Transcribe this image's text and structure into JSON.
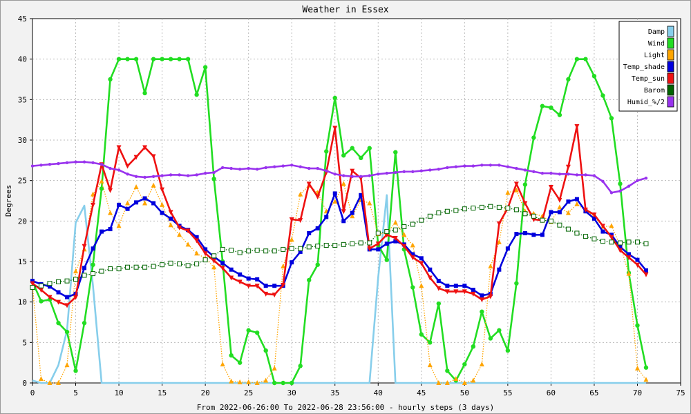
{
  "chart_data": {
    "type": "line",
    "title": "Weather in Essex",
    "xlabel": "From 2022-06-26:00 To 2022-06-28 23:56:00 - hourly steps (3 days)",
    "ylabel": "Degrees",
    "xlim": [
      0,
      75
    ],
    "ylim": [
      0,
      45
    ],
    "xticks": [
      0,
      5,
      10,
      15,
      20,
      25,
      30,
      35,
      40,
      45,
      50,
      55,
      60,
      65,
      70,
      75
    ],
    "yticks": [
      0,
      5,
      10,
      15,
      20,
      25,
      30,
      35,
      40,
      45
    ],
    "grid": true,
    "legend_position": "top-right",
    "x": [
      0,
      1,
      2,
      3,
      4,
      5,
      6,
      7,
      8,
      9,
      10,
      11,
      12,
      13,
      14,
      15,
      16,
      17,
      18,
      19,
      20,
      21,
      22,
      23,
      24,
      25,
      26,
      27,
      28,
      29,
      30,
      31,
      32,
      33,
      34,
      35,
      36,
      37,
      38,
      39,
      40,
      41,
      42,
      43,
      44,
      45,
      46,
      47,
      48,
      49,
      50,
      51,
      52,
      53,
      54,
      55,
      56,
      57,
      58,
      59,
      60,
      61,
      62,
      63,
      64,
      65,
      66,
      67,
      68,
      69,
      70,
      71
    ],
    "series": [
      {
        "name": "Damp",
        "color": "#87ceeb",
        "style": "solid",
        "marker": "none",
        "values": [
          0.3,
          0,
          0,
          2.2,
          6.5,
          19.8,
          21.9,
          12,
          0,
          0,
          0,
          0,
          0,
          0,
          0,
          0,
          0,
          0,
          0,
          0,
          0,
          0,
          0,
          0,
          0,
          0,
          0,
          0,
          0,
          0,
          0,
          0,
          0,
          0,
          0,
          0,
          0,
          0,
          0,
          0,
          13,
          23.2,
          0,
          0,
          0,
          0,
          0,
          0,
          0,
          0,
          0,
          0,
          0,
          0,
          0,
          0,
          0,
          0,
          0,
          0,
          0,
          0,
          0,
          0,
          0,
          0,
          0,
          0,
          0,
          0,
          0,
          0
        ]
      },
      {
        "name": "Wind",
        "color": "#22dd22",
        "style": "solid",
        "marker": "circle",
        "values": [
          12.5,
          10.1,
          10.3,
          7.4,
          6.3,
          1.5,
          7.4,
          14.6,
          24,
          37.5,
          40,
          40,
          40,
          35.8,
          40,
          40,
          40,
          40,
          40,
          35.6,
          39,
          25.2,
          15,
          3.4,
          2.5,
          6.5,
          6.2,
          4,
          0,
          0,
          0,
          2.1,
          12.7,
          14.6,
          28.6,
          35.2,
          28.1,
          29,
          27.8,
          29,
          17,
          15.2,
          28.5,
          16.5,
          11.8,
          6,
          5,
          9.8,
          1.5,
          0.3,
          2.3,
          4.5,
          8.8,
          5.5,
          6.5,
          4,
          12.3,
          24.5,
          30.3,
          34.2,
          34,
          33.1,
          37.5,
          40,
          40,
          37.9,
          35.5,
          32.7,
          24.6,
          13.6,
          7.1,
          1.9
        ]
      },
      {
        "name": "Light",
        "color": "#ffa500",
        "style": "dotted",
        "marker": "triangle",
        "values": [
          12,
          0.5,
          0,
          0,
          2.2,
          13.8,
          16.5,
          23.3,
          24.9,
          21,
          19.4,
          22.2,
          24.2,
          22.2,
          24.4,
          22,
          19.5,
          18.3,
          17.1,
          16,
          15.4,
          14.3,
          2.3,
          0.2,
          0.1,
          0.1,
          0,
          0.3,
          1.8,
          14.4,
          17.7,
          23.3,
          24.4,
          23.5,
          21.2,
          22.4,
          24.6,
          20.6,
          22.6,
          22.2,
          18.4,
          18.5,
          19.8,
          18.3,
          17,
          12,
          2.2,
          0,
          0,
          0.5,
          0,
          0.3,
          2.3,
          14.4,
          17.4,
          23.5,
          23.8,
          21.2,
          20.9,
          20.6,
          19.9,
          21.7,
          21,
          22.1,
          21.3,
          20.6,
          19.3,
          19.4,
          17,
          13.5,
          1.8,
          0.4
        ]
      },
      {
        "name": "Temp_shade",
        "color": "#0000dd",
        "style": "solid",
        "marker": "square",
        "values": [
          12.6,
          12.2,
          11.9,
          11.2,
          10.6,
          11,
          14.2,
          16.6,
          18.7,
          19,
          22,
          21.5,
          22.3,
          22.8,
          22.2,
          21,
          20.3,
          19.4,
          18.9,
          18,
          16.5,
          15.6,
          14.8,
          14,
          13.4,
          12.9,
          12.8,
          12,
          12,
          12,
          14.9,
          16.2,
          18.5,
          19.1,
          20.5,
          23.4,
          20,
          21,
          23.2,
          16.5,
          16.5,
          17.2,
          17.5,
          17.1,
          15.9,
          15.4,
          14,
          12.6,
          12,
          12,
          12,
          11.5,
          10.8,
          11,
          14,
          16.6,
          18.4,
          18.5,
          18.3,
          18.3,
          21.1,
          21.1,
          22.4,
          22.7,
          21.2,
          20.3,
          18.7,
          18.3,
          16.8,
          15.9,
          15.2,
          13.9
        ]
      },
      {
        "name": "Temp_sun",
        "color": "#ee1111",
        "style": "solid",
        "marker": "invtriangle",
        "values": [
          12.3,
          11.5,
          10.6,
          10,
          9.6,
          10.6,
          16.9,
          22,
          27,
          23.8,
          29.1,
          26.8,
          27.9,
          29.1,
          28,
          23.9,
          21.1,
          19.2,
          18.8,
          17.6,
          16,
          15.1,
          14.2,
          13,
          12.5,
          12,
          12,
          11,
          10.9,
          12.1,
          20.2,
          20.1,
          24.6,
          23,
          26,
          31.5,
          21.2,
          26.2,
          25.3,
          16.6,
          17.2,
          18.3,
          17.9,
          16.9,
          15.5,
          14.8,
          13,
          11.7,
          11.3,
          11.3,
          11.3,
          11,
          10.3,
          10.7,
          19.7,
          21.6,
          24.6,
          22.2,
          20.2,
          20.1,
          24.2,
          22.6,
          26.7,
          31.7,
          21.4,
          20.8,
          19.4,
          18,
          16.4,
          15.5,
          14.6,
          13.4
        ]
      },
      {
        "name": "Barom",
        "color": "#006400",
        "style": "dotted",
        "marker": "hollowsquare",
        "values": [
          11.8,
          12,
          12.3,
          12.5,
          12.6,
          12.8,
          13.3,
          13.5,
          13.8,
          14.1,
          14.1,
          14.3,
          14.3,
          14.3,
          14.4,
          14.6,
          14.8,
          14.7,
          14.5,
          14.7,
          15.2,
          15.7,
          16.5,
          16.4,
          16.1,
          16.3,
          16.4,
          16.3,
          16.3,
          16.5,
          16.6,
          16.6,
          16.8,
          16.9,
          17,
          17,
          17.1,
          17.2,
          17.3,
          17.3,
          18.5,
          18.7,
          18.9,
          19.3,
          19.6,
          20.1,
          20.6,
          21,
          21.2,
          21.3,
          21.5,
          21.6,
          21.7,
          21.8,
          21.7,
          21.6,
          21.4,
          20.9,
          20.6,
          20.1,
          20,
          19.5,
          19,
          18.5,
          18.1,
          17.8,
          17.5,
          17.4,
          17.3,
          17.4,
          17.4,
          17.2
        ]
      },
      {
        "name": "Humid_%/2",
        "color": "#9933ee",
        "style": "solid",
        "marker": "dot",
        "values": [
          26.8,
          26.9,
          27,
          27.1,
          27.2,
          27.3,
          27.3,
          27.2,
          27,
          26.5,
          26.3,
          25.8,
          25.5,
          25.4,
          25.5,
          25.6,
          25.7,
          25.7,
          25.6,
          25.7,
          25.9,
          26,
          26.6,
          26.5,
          26.4,
          26.5,
          26.4,
          26.6,
          26.7,
          26.8,
          26.9,
          26.7,
          26.5,
          26.5,
          26.2,
          25.8,
          25.6,
          25.5,
          25.5,
          25.6,
          25.8,
          25.9,
          26,
          26.1,
          26.1,
          26.2,
          26.3,
          26.4,
          26.6,
          26.7,
          26.8,
          26.8,
          26.9,
          26.9,
          26.9,
          26.7,
          26.5,
          26.3,
          26.1,
          25.9,
          25.9,
          25.8,
          25.8,
          25.7,
          25.7,
          25.6,
          24.9,
          23.5,
          23.7,
          24.3,
          25,
          25.3
        ]
      }
    ]
  }
}
